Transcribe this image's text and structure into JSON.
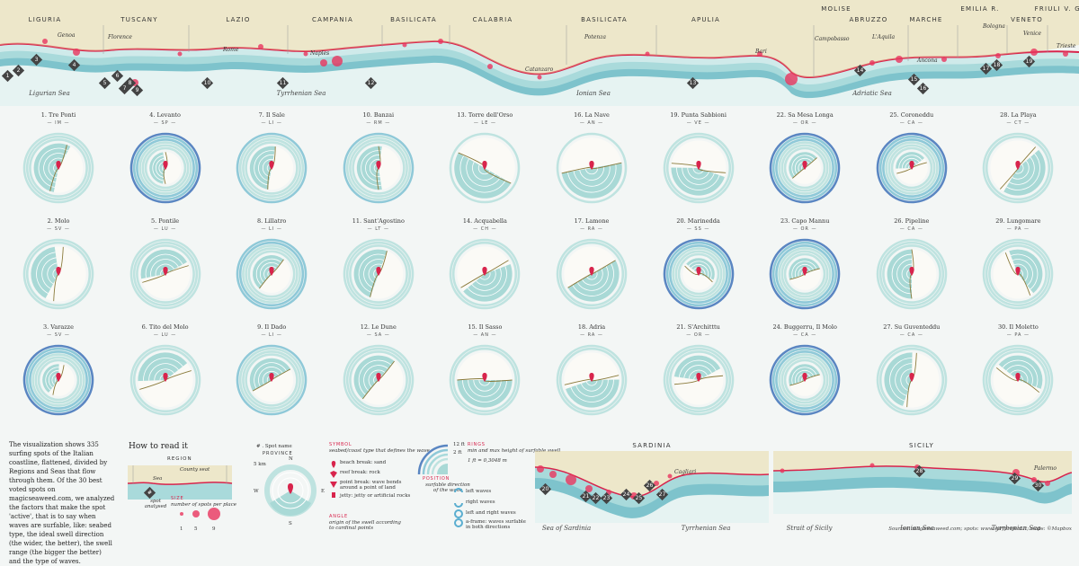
{
  "regions": [
    "LIGURIA",
    "TUSCANY",
    "LAZIO",
    "CAMPANIA",
    "BASILICATA",
    "CALABRIA",
    "BASILICATA",
    "APULIA",
    "MOLISE",
    "ABRUZZO",
    "MARCHE",
    "EMILIA R.",
    "VENETO",
    "FRIULI V. G."
  ],
  "seas_top": [
    "Ligurian Sea",
    "Tyrrhenian Sea",
    "Ionian Sea",
    "Adriatic Sea"
  ],
  "cities": [
    "Genoa",
    "Florence",
    "Rome",
    "Naples",
    "Potenza",
    "Catanzaro",
    "Bari",
    "Campobasso",
    "L'Aquila",
    "Ancona",
    "Bologna",
    "Venice",
    "Trieste"
  ],
  "map_tags": [
    "1",
    "2",
    "3",
    "4",
    "5",
    "6",
    "7",
    "8",
    "9",
    "10",
    "11",
    "12",
    "13",
    "14",
    "15",
    "16",
    "17",
    "18",
    "19"
  ],
  "spots": [
    {
      "name": "1. Tre Ponti",
      "prov": "IM",
      "rings": 3,
      "cov": 0.55,
      "rot": 200
    },
    {
      "name": "4. Levanto",
      "prov": "SP",
      "rings": 6,
      "cov": 0.45,
      "rot": 180
    },
    {
      "name": "7. Il Sale",
      "prov": "LI",
      "rings": 4,
      "cov": 0.5,
      "rot": 190
    },
    {
      "name": "10. Banzai",
      "prov": "RM",
      "rings": 4,
      "cov": 0.55,
      "rot": 180
    },
    {
      "name": "13. Torre dell'Orso",
      "prov": "LE",
      "rings": 1,
      "cov": 0.5,
      "rot": 120
    },
    {
      "name": "16. La Nave",
      "prov": "AN",
      "rings": 1,
      "cov": 0.5,
      "rot": 80
    },
    {
      "name": "19. Punta Sabbioni",
      "prov": "VE",
      "rings": 2,
      "cov": 0.45,
      "rot": 100
    },
    {
      "name": "22. Sa Mesa Longa",
      "prov": "OR",
      "rings": 6,
      "cov": 0.5,
      "rot": 230
    },
    {
      "name": "25. Coroneddu",
      "prov": "CA",
      "rings": 6,
      "cov": 0.4,
      "rot": 250
    },
    {
      "name": "28. La Playa",
      "prov": "CT",
      "rings": 2,
      "cov": 0.45,
      "rot": 40
    },
    {
      "name": "2. Molo",
      "prov": "SV",
      "rings": 2,
      "cov": 0.4,
      "rot": 190
    },
    {
      "name": "5. Pontile",
      "prov": "LU",
      "rings": 3,
      "cov": 0.45,
      "rot": 250
    },
    {
      "name": "8. Lillatro",
      "prov": "LI",
      "rings": 5,
      "cov": 0.5,
      "rot": 220
    },
    {
      "name": "11. Sant'Agostino",
      "prov": "LT",
      "rings": 3,
      "cov": 0.5,
      "rot": 200
    },
    {
      "name": "14. Acquabella",
      "prov": "CH",
      "rings": 2,
      "cov": 0.45,
      "rot": 60
    },
    {
      "name": "17. Lamone",
      "prov": "RA",
      "rings": 2,
      "cov": 0.5,
      "rot": 60
    },
    {
      "name": "20. Marinedda",
      "prov": "SS",
      "rings": 6,
      "cov": 0.45,
      "rot": 300
    },
    {
      "name": "23. Capo Mannu",
      "prov": "OR",
      "rings": 6,
      "cov": 0.5,
      "rot": 250
    },
    {
      "name": "26. Pipeline",
      "prov": "CA",
      "rings": 3,
      "cov": 0.5,
      "rot": 180
    },
    {
      "name": "29. Lungomare",
      "prov": "PA",
      "rings": 3,
      "cov": 0.45,
      "rot": 330
    },
    {
      "name": "3. Varazze",
      "prov": "SV",
      "rings": 6,
      "cov": 0.4,
      "rot": 200
    },
    {
      "name": "6. Tito del Molo",
      "prov": "LU",
      "rings": 2,
      "cov": 0.4,
      "rot": 250
    },
    {
      "name": "9. Il Dado",
      "prov": "LI",
      "rings": 4,
      "cov": 0.5,
      "rot": 240
    },
    {
      "name": "12. Le Dune",
      "prov": "SA",
      "rings": 3,
      "cov": 0.5,
      "rot": 220
    },
    {
      "name": "15. Il Sasso",
      "prov": "AN",
      "rings": 2,
      "cov": 0.5,
      "rot": 90
    },
    {
      "name": "18. Adria",
      "prov": "RA",
      "rings": 2,
      "cov": 0.45,
      "rot": 80
    },
    {
      "name": "21. S'Architttu",
      "prov": "OR",
      "rings": 3,
      "cov": 0.4,
      "rot": 260
    },
    {
      "name": "24. Buggerru, Il Molo",
      "prov": "CA",
      "rings": 6,
      "cov": 0.5,
      "rot": 250
    },
    {
      "name": "27. Su Guventeddu",
      "prov": "CA",
      "rings": 2,
      "cov": 0.45,
      "rot": 190
    },
    {
      "name": "30. Il Moletto",
      "prov": "PA",
      "rings": 3,
      "cov": 0.45,
      "rot": 300
    }
  ],
  "legend": {
    "intro": "The visualization shows 335 surfing spots of the Italian coastline, flattened, divided by Regions and Seas that flow through them. Of the 30 best voted spots on magicseaweed.com, we analyzed the factors that make the spot 'active', that is to say when waves are surfable, like: seabed type, the ideal swell direction (the wider, the better), the swell range (the bigger the better) and the type of waves.",
    "how_title": "How to read it",
    "region": "REGION",
    "county_seat": "County seat",
    "sea": "Sea",
    "spot_analysed": "spot analysed",
    "size_label": "SIZE",
    "size_desc": "number of spots per place",
    "size_values": [
      "1",
      "5",
      "9"
    ],
    "spot_name": "# . Spot name",
    "province": "PROVINCE",
    "scale": "5 km",
    "compass": [
      "N",
      "E",
      "S",
      "W"
    ],
    "symbol_label": "SYMBOL",
    "symbol_desc": "seabed/coast type that defines the wave",
    "symbols": [
      "beach break: sand",
      "reef break: rock",
      "point break: wave bends around a point of land",
      "jetty: jetty or artificial rocks"
    ],
    "angle_label": "ANGLE",
    "angle_desc": "origin of the swell according to cardinal points",
    "position_label": "POSITION",
    "position_desc": "surfable direction of the wave",
    "rings_label": "RINGS",
    "rings_desc": "min and max height of surfable swell",
    "rings_values": [
      "12 ft",
      "2 ft",
      "1 ft = 0,3048 m"
    ],
    "wave_types": [
      "left waves",
      "right waves",
      "left and right waves",
      "a-frame: waves surfable in both directions"
    ]
  },
  "sardinia": {
    "title": "SARDINIA",
    "city": "Cagliari",
    "seas": [
      "Sea of Sardinia",
      "Tyrrhenian Sea"
    ],
    "tags": [
      "20",
      "21",
      "22",
      "23",
      "24",
      "25",
      "26",
      "27"
    ]
  },
  "sicily": {
    "title": "SICILY",
    "city": "Palermo",
    "seas": [
      "Strait of Sicily",
      "Ionian Sea",
      "Tyrrhenian Sea"
    ],
    "tags": [
      "28",
      "29",
      "30"
    ]
  },
  "sources": "Sources: magicseaweed.com; spots: www.surfproject.it; maps: ©Mapbox",
  "colors": {
    "ring_light": "#bfe3e0",
    "ring_mid": "#8fc9d8",
    "ring_dark": "#5a86c2",
    "sector": "#a9d9d6",
    "marker": "#d8244c",
    "coast": "#8a7a3a"
  }
}
